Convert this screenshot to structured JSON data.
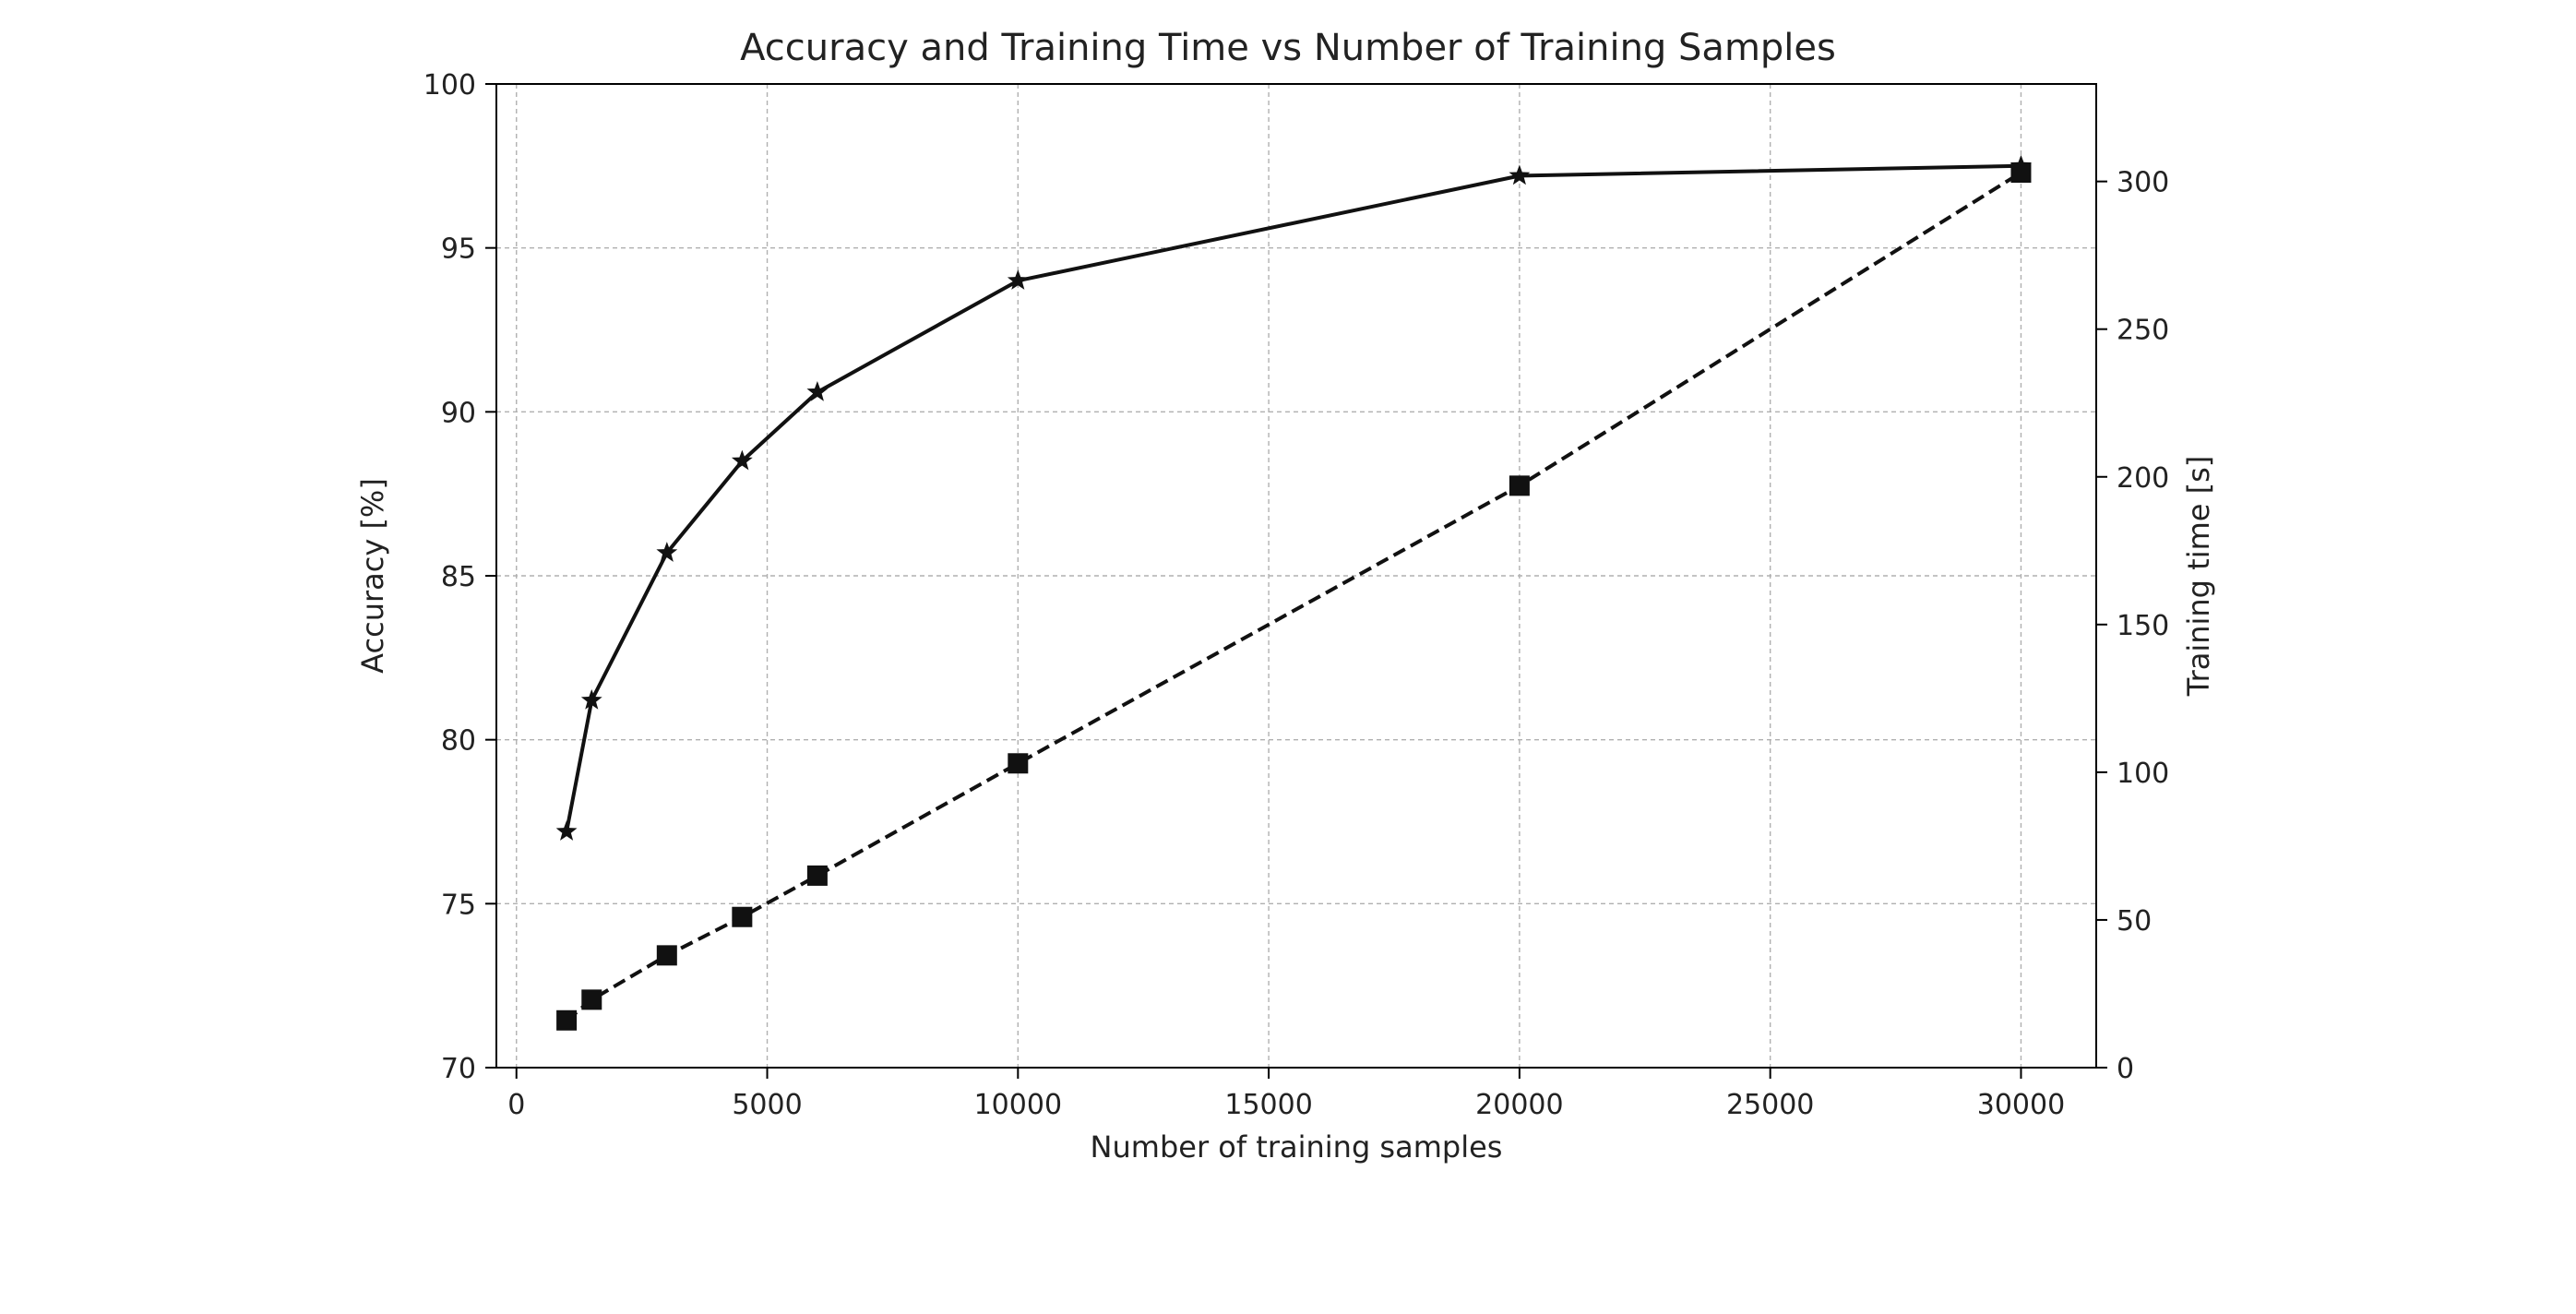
{
  "chart_data": {
    "type": "line",
    "title": "Accuracy and Training Time vs Number of Training Samples",
    "xlabel": "Number of training samples",
    "ylabel": "Accuracy [%]",
    "ylabel_right": "Training time [s]",
    "x": [
      1000,
      1500,
      3000,
      4500,
      6000,
      10000,
      20000,
      30000
    ],
    "xlim": [
      -400,
      31500
    ],
    "ylim": [
      70,
      100
    ],
    "ylim_right": [
      0,
      333
    ],
    "xticks": [
      0,
      5000,
      10000,
      15000,
      20000,
      25000,
      30000
    ],
    "yticks": [
      70,
      75,
      80,
      85,
      90,
      95,
      100
    ],
    "yticks_right": [
      0,
      50,
      100,
      150,
      200,
      250,
      300
    ],
    "grid": true,
    "series": [
      {
        "axis": "left",
        "values": [
          77.2,
          81.2,
          85.7,
          88.5,
          90.6,
          94.0,
          97.2,
          97.5
        ],
        "marker": "star",
        "linestyle": "solid",
        "color": "#111111"
      },
      {
        "axis": "right",
        "values": [
          16,
          23,
          38,
          51,
          65,
          103,
          197,
          303
        ],
        "marker": "square",
        "linestyle": "dashed",
        "color": "#111111"
      }
    ]
  }
}
